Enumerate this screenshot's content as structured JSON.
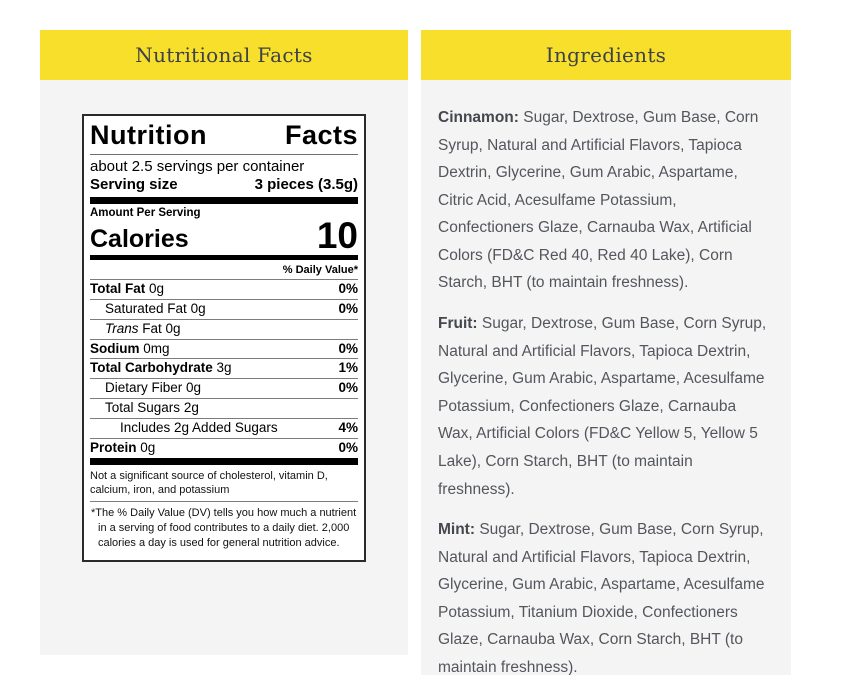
{
  "colors": {
    "accent_yellow": "#F7DF2B",
    "panel_background": "#F4F4F4",
    "header_text": "#3E4148",
    "body_text": "#53565C"
  },
  "left_panel": {
    "header": "Nutritional Facts",
    "label": {
      "title": "Nutrition Facts",
      "servings_per_container": "about 2.5 servings per container",
      "serving_size_label": "Serving size",
      "serving_size_value": "3 pieces (3.5g)",
      "amount_per_serving": "Amount Per Serving",
      "calories_label": "Calories",
      "calories_value": "10",
      "daily_value_header": "% Daily Value*",
      "rows": [
        {
          "name": "Total Fat",
          "amount": "0g",
          "dv": "0%",
          "bold": true,
          "indent": 0,
          "italic_first": false
        },
        {
          "name": "Saturated Fat",
          "amount": "0g",
          "dv": "0%",
          "bold": false,
          "indent": 1,
          "italic_first": false
        },
        {
          "name": "Trans Fat",
          "amount": "0g",
          "dv": "",
          "bold": false,
          "indent": 1,
          "italic_first": true
        },
        {
          "name": "Sodium",
          "amount": "0mg",
          "dv": "0%",
          "bold": true,
          "indent": 0,
          "italic_first": false
        },
        {
          "name": "Total Carbohydrate",
          "amount": "3g",
          "dv": "1%",
          "bold": true,
          "indent": 0,
          "italic_first": false
        },
        {
          "name": "Dietary Fiber",
          "amount": "0g",
          "dv": "0%",
          "bold": false,
          "indent": 1,
          "italic_first": false
        },
        {
          "name": "Total Sugars",
          "amount": "2g",
          "dv": "",
          "bold": false,
          "indent": 1,
          "italic_first": false
        },
        {
          "name": "Includes 2g Added Sugars",
          "amount": "",
          "dv": "4%",
          "bold": false,
          "indent": 2,
          "italic_first": false
        },
        {
          "name": "Protein",
          "amount": "0g",
          "dv": "0%",
          "bold": true,
          "indent": 0,
          "italic_first": false
        }
      ],
      "footnote1": "Not a significant source of cholesterol, vitamin D, calcium, iron, and potassium",
      "footnote2": "*The % Daily Value (DV) tells you how much a nutrient in a serving of food contributes to a daily diet. 2,000 calories a day is used for general nutrition advice."
    }
  },
  "right_panel": {
    "header": "Ingredients",
    "paragraphs": [
      {
        "flavor": "Cinnamon:",
        "text": "Sugar, Dextrose, Gum Base, Corn Syrup, Natural and Artificial Flavors, Tapioca Dextrin, Glycerine, Gum Arabic, Aspartame, Citric Acid, Acesulfame Potassium, Confectioners Glaze, Carnauba Wax, Artificial Colors (FD&C Red 40, Red 40 Lake), Corn Starch, BHT (to maintain freshness)."
      },
      {
        "flavor": "Fruit:",
        "text": "Sugar, Dextrose, Gum Base, Corn Syrup, Natural and Artificial Flavors, Tapioca Dextrin, Glycerine, Gum Arabic, Aspartame, Acesulfame Potassium, Confectioners Glaze, Carnauba Wax, Artificial Colors (FD&C Yellow 5, Yellow 5 Lake), Corn Starch, BHT (to maintain freshness)."
      },
      {
        "flavor": "Mint:",
        "text": "Sugar, Dextrose, Gum Base, Corn Syrup, Natural and Artificial Flavors, Tapioca Dextrin, Glycerine, Gum Arabic, Aspartame, Acesulfame Potassium, Titanium Dioxide, Confectioners Glaze, Carnauba Wax, Corn Starch, BHT (to maintain freshness)."
      }
    ]
  }
}
